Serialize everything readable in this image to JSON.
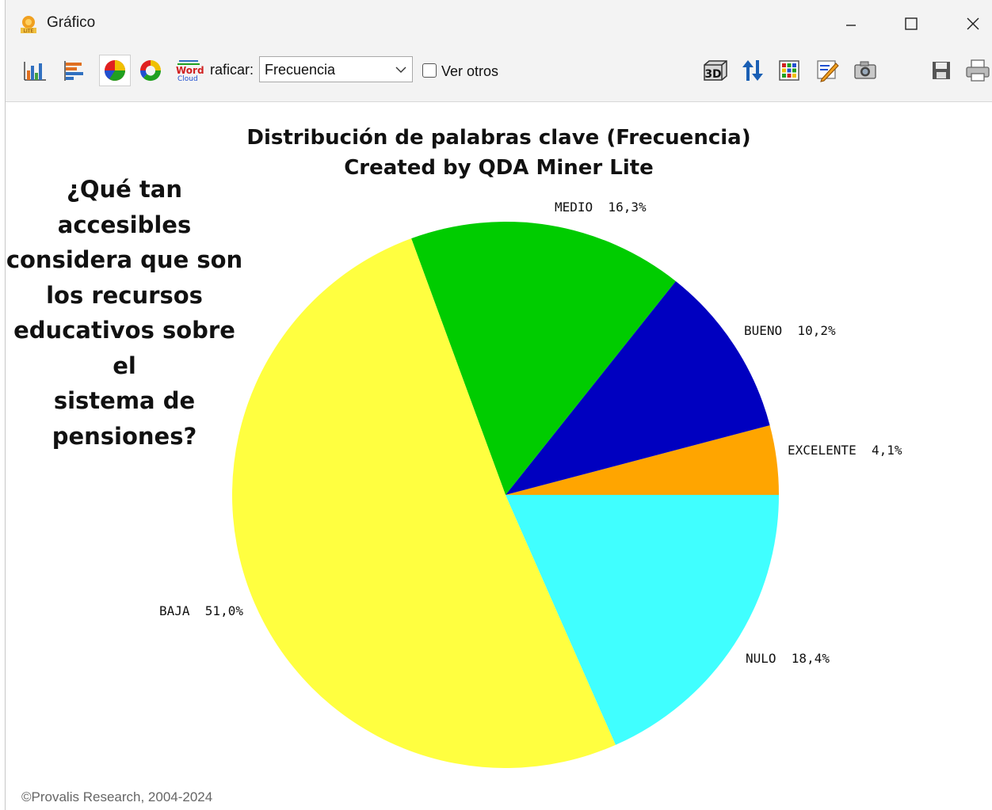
{
  "window": {
    "title": "Gráfico",
    "controls": [
      "minimize",
      "maximize",
      "close"
    ]
  },
  "toolbar": {
    "chart_type_icons": [
      "bar-chart-icon",
      "horizontal-bar-icon",
      "pie-chart-icon",
      "donut-chart-icon",
      "word-cloud-icon"
    ],
    "word_cloud_text": "Word",
    "word_cloud_subtext": "Cloud",
    "graficar_label": "raficar:",
    "graficar_value": "Frecuencia",
    "ver_otros_label": "Ver otros",
    "ver_otros_checked": false,
    "right_icons": [
      "3d-icon",
      "sort-icon",
      "grid-icon",
      "edit-icon",
      "camera-icon",
      "save-icon",
      "print-icon"
    ],
    "label_3d": "3D"
  },
  "question_text": [
    "¿Qué tan accesibles",
    "considera que son",
    "los recursos",
    "educativos sobre el",
    "sistema de",
    "pensiones?"
  ],
  "footer": "©Provalis Research, 2004-2024",
  "chart_data": {
    "type": "pie",
    "title": "Distribución de palabras clave (Frecuencia)",
    "subtitle": "Created by QDA Miner Lite",
    "slices": [
      {
        "label": "EXCELENTE",
        "percent_text": "4,1%",
        "value": 4.1,
        "color": "#ffa500"
      },
      {
        "label": "BUENO",
        "percent_text": "10,2%",
        "value": 10.2,
        "color": "#0000c0"
      },
      {
        "label": "MEDIO",
        "percent_text": "16,3%",
        "value": 16.3,
        "color": "#00cc00"
      },
      {
        "label": "BAJA",
        "percent_text": "51,0%",
        "value": 51.0,
        "color": "#ffff40"
      },
      {
        "label": "NULO",
        "percent_text": "18,4%",
        "value": 18.4,
        "color": "#40ffff"
      }
    ],
    "direction": "counterclockwise",
    "start": "3-o'clock"
  }
}
